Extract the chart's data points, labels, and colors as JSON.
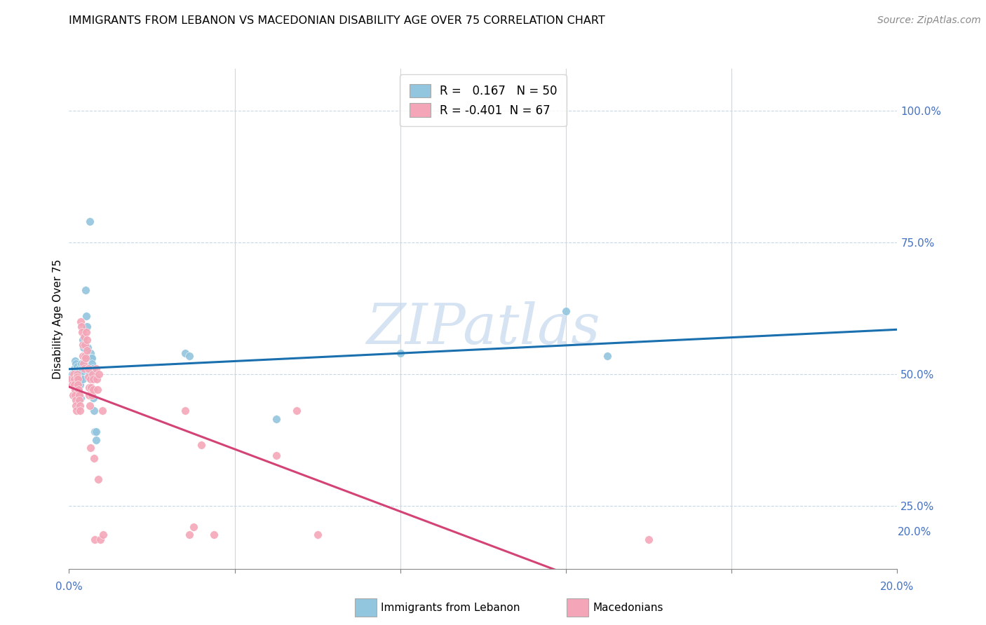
{
  "title": "IMMIGRANTS FROM LEBANON VS MACEDONIAN DISABILITY AGE OVER 75 CORRELATION CHART",
  "source": "Source: ZipAtlas.com",
  "ylabel": "Disability Age Over 75",
  "legend_blue_r": " 0.167",
  "legend_blue_n": "50",
  "legend_pink_r": "-0.401",
  "legend_pink_n": "67",
  "legend_label_blue": "Immigrants from Lebanon",
  "legend_label_pink": "Macedonians",
  "blue_color": "#92c5de",
  "pink_color": "#f4a6b8",
  "trendline_blue": "#1a6faf",
  "trendline_pink": "#d44375",
  "watermark_color": "#c5d8ed",
  "xlim": [
    0.0,
    0.2
  ],
  "ylim": [
    0.13,
    1.08
  ],
  "grid_color": "#c8d8e8",
  "right_tick_color": "#4472c4",
  "blue_points": [
    [
      0.0008,
      0.5
    ],
    [
      0.001,
      0.49
    ],
    [
      0.0012,
      0.51
    ],
    [
      0.0013,
      0.495
    ],
    [
      0.0014,
      0.525
    ],
    [
      0.0015,
      0.505
    ],
    [
      0.0016,
      0.52
    ],
    [
      0.0017,
      0.5
    ],
    [
      0.0018,
      0.49
    ],
    [
      0.0019,
      0.515
    ],
    [
      0.002,
      0.505
    ],
    [
      0.0021,
      0.495
    ],
    [
      0.0022,
      0.485
    ],
    [
      0.0023,
      0.475
    ],
    [
      0.0024,
      0.51
    ],
    [
      0.0025,
      0.5
    ],
    [
      0.0026,
      0.49
    ],
    [
      0.0027,
      0.48
    ],
    [
      0.0028,
      0.455
    ],
    [
      0.003,
      0.52
    ],
    [
      0.0031,
      0.51
    ],
    [
      0.0032,
      0.505
    ],
    [
      0.0033,
      0.49
    ],
    [
      0.0034,
      0.565
    ],
    [
      0.0035,
      0.55
    ],
    [
      0.004,
      0.66
    ],
    [
      0.0042,
      0.61
    ],
    [
      0.0043,
      0.59
    ],
    [
      0.0045,
      0.55
    ],
    [
      0.0046,
      0.53
    ],
    [
      0.0047,
      0.51
    ],
    [
      0.0048,
      0.5
    ],
    [
      0.005,
      0.79
    ],
    [
      0.0052,
      0.54
    ],
    [
      0.0053,
      0.53
    ],
    [
      0.0055,
      0.53
    ],
    [
      0.0056,
      0.52
    ],
    [
      0.0057,
      0.51
    ],
    [
      0.0058,
      0.455
    ],
    [
      0.006,
      0.43
    ],
    [
      0.0062,
      0.39
    ],
    [
      0.0065,
      0.39
    ],
    [
      0.0066,
      0.375
    ],
    [
      0.028,
      0.54
    ],
    [
      0.029,
      0.535
    ],
    [
      0.05,
      0.415
    ],
    [
      0.08,
      0.54
    ],
    [
      0.12,
      0.62
    ],
    [
      0.13,
      0.535
    ]
  ],
  "pink_points": [
    [
      0.0005,
      0.49
    ],
    [
      0.0007,
      0.48
    ],
    [
      0.0009,
      0.46
    ],
    [
      0.0011,
      0.5
    ],
    [
      0.0012,
      0.49
    ],
    [
      0.0013,
      0.48
    ],
    [
      0.0014,
      0.47
    ],
    [
      0.0015,
      0.46
    ],
    [
      0.0016,
      0.45
    ],
    [
      0.0017,
      0.44
    ],
    [
      0.0018,
      0.43
    ],
    [
      0.0019,
      0.5
    ],
    [
      0.002,
      0.495
    ],
    [
      0.0021,
      0.49
    ],
    [
      0.0022,
      0.48
    ],
    [
      0.0023,
      0.47
    ],
    [
      0.0024,
      0.46
    ],
    [
      0.0025,
      0.45
    ],
    [
      0.0026,
      0.44
    ],
    [
      0.0027,
      0.43
    ],
    [
      0.0028,
      0.6
    ],
    [
      0.003,
      0.59
    ],
    [
      0.0032,
      0.58
    ],
    [
      0.0033,
      0.555
    ],
    [
      0.0034,
      0.535
    ],
    [
      0.0035,
      0.52
    ],
    [
      0.0036,
      0.51
    ],
    [
      0.0037,
      0.57
    ],
    [
      0.0038,
      0.555
    ],
    [
      0.0039,
      0.535
    ],
    [
      0.004,
      0.53
    ],
    [
      0.0042,
      0.58
    ],
    [
      0.0043,
      0.565
    ],
    [
      0.0044,
      0.545
    ],
    [
      0.0046,
      0.51
    ],
    [
      0.0047,
      0.495
    ],
    [
      0.0048,
      0.475
    ],
    [
      0.0049,
      0.46
    ],
    [
      0.005,
      0.44
    ],
    [
      0.0051,
      0.36
    ],
    [
      0.0052,
      0.49
    ],
    [
      0.0054,
      0.475
    ],
    [
      0.0055,
      0.46
    ],
    [
      0.0057,
      0.5
    ],
    [
      0.0058,
      0.49
    ],
    [
      0.0059,
      0.47
    ],
    [
      0.006,
      0.34
    ],
    [
      0.0062,
      0.185
    ],
    [
      0.0065,
      0.51
    ],
    [
      0.0067,
      0.49
    ],
    [
      0.0068,
      0.47
    ],
    [
      0.007,
      0.3
    ],
    [
      0.0072,
      0.5
    ],
    [
      0.0075,
      0.185
    ],
    [
      0.008,
      0.43
    ],
    [
      0.0082,
      0.195
    ],
    [
      0.028,
      0.43
    ],
    [
      0.029,
      0.195
    ],
    [
      0.03,
      0.21
    ],
    [
      0.032,
      0.365
    ],
    [
      0.035,
      0.195
    ],
    [
      0.05,
      0.345
    ],
    [
      0.055,
      0.43
    ],
    [
      0.06,
      0.195
    ],
    [
      0.14,
      0.185
    ]
  ]
}
